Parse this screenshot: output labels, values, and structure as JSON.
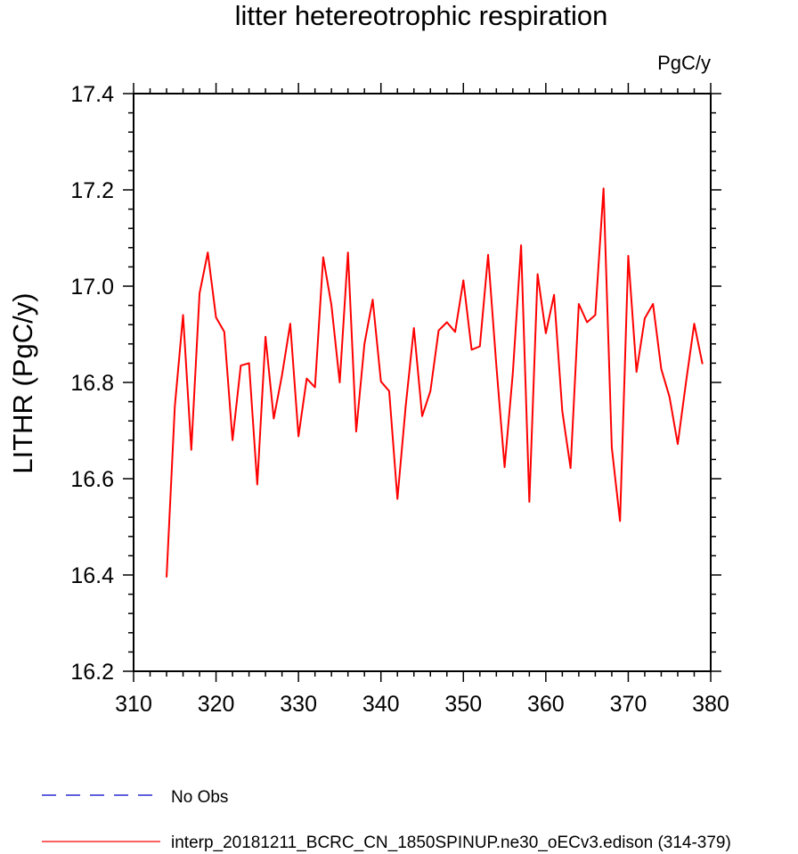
{
  "chart_data": {
    "type": "line",
    "title": "litter hetereotrophic respiration",
    "units_label": "PgC/y",
    "ylabel": "LITHR  (PgC/y)",
    "xlabel": "",
    "xlim": [
      310,
      380
    ],
    "ylim": [
      16.2,
      17.4
    ],
    "x_ticks": [
      310,
      320,
      330,
      340,
      350,
      360,
      370,
      380
    ],
    "y_ticks": [
      16.2,
      16.4,
      16.6,
      16.8,
      17.0,
      17.2,
      17.4
    ],
    "y_tick_labels": [
      "16.2",
      "16.4",
      "16.6",
      "16.8",
      "17.0",
      "17.2",
      "17.4"
    ],
    "grid": false,
    "legend_position": "bottom-left",
    "series": [
      {
        "name": "No Obs",
        "color": "#0000cc",
        "dashed": true,
        "x": [],
        "y": []
      },
      {
        "name": "interp_20181211_BCRC_CN_1850SPINUP.ne30_oECv3.edison (314-379)",
        "color": "#ff0000",
        "dashed": false,
        "x": [
          314,
          315,
          316,
          317,
          318,
          319,
          320,
          321,
          322,
          323,
          324,
          325,
          326,
          327,
          328,
          329,
          330,
          331,
          332,
          333,
          334,
          335,
          336,
          337,
          338,
          339,
          340,
          341,
          342,
          343,
          344,
          345,
          346,
          347,
          348,
          349,
          350,
          351,
          352,
          353,
          354,
          355,
          356,
          357,
          358,
          359,
          360,
          361,
          362,
          363,
          364,
          365,
          366,
          367,
          368,
          369,
          370,
          371,
          372,
          373,
          374,
          375,
          376,
          377,
          378,
          379
        ],
        "y": [
          16.395,
          16.75,
          16.94,
          16.66,
          16.985,
          17.07,
          16.935,
          16.905,
          16.68,
          16.835,
          16.84,
          16.588,
          16.895,
          16.725,
          16.815,
          16.922,
          16.688,
          16.808,
          16.79,
          17.06,
          16.96,
          16.8,
          17.07,
          16.698,
          16.88,
          16.972,
          16.802,
          16.782,
          16.558,
          16.75,
          16.913,
          16.73,
          16.782,
          16.908,
          16.925,
          16.905,
          17.012,
          16.868,
          16.875,
          17.065,
          16.835,
          16.624,
          16.82,
          17.085,
          16.552,
          17.025,
          16.902,
          16.982,
          16.74,
          16.622,
          16.963,
          16.925,
          16.94,
          17.203,
          16.665,
          16.512,
          17.063,
          16.822,
          16.933,
          16.963,
          16.828,
          16.77,
          16.672,
          16.8,
          16.922,
          16.838
        ]
      }
    ]
  }
}
